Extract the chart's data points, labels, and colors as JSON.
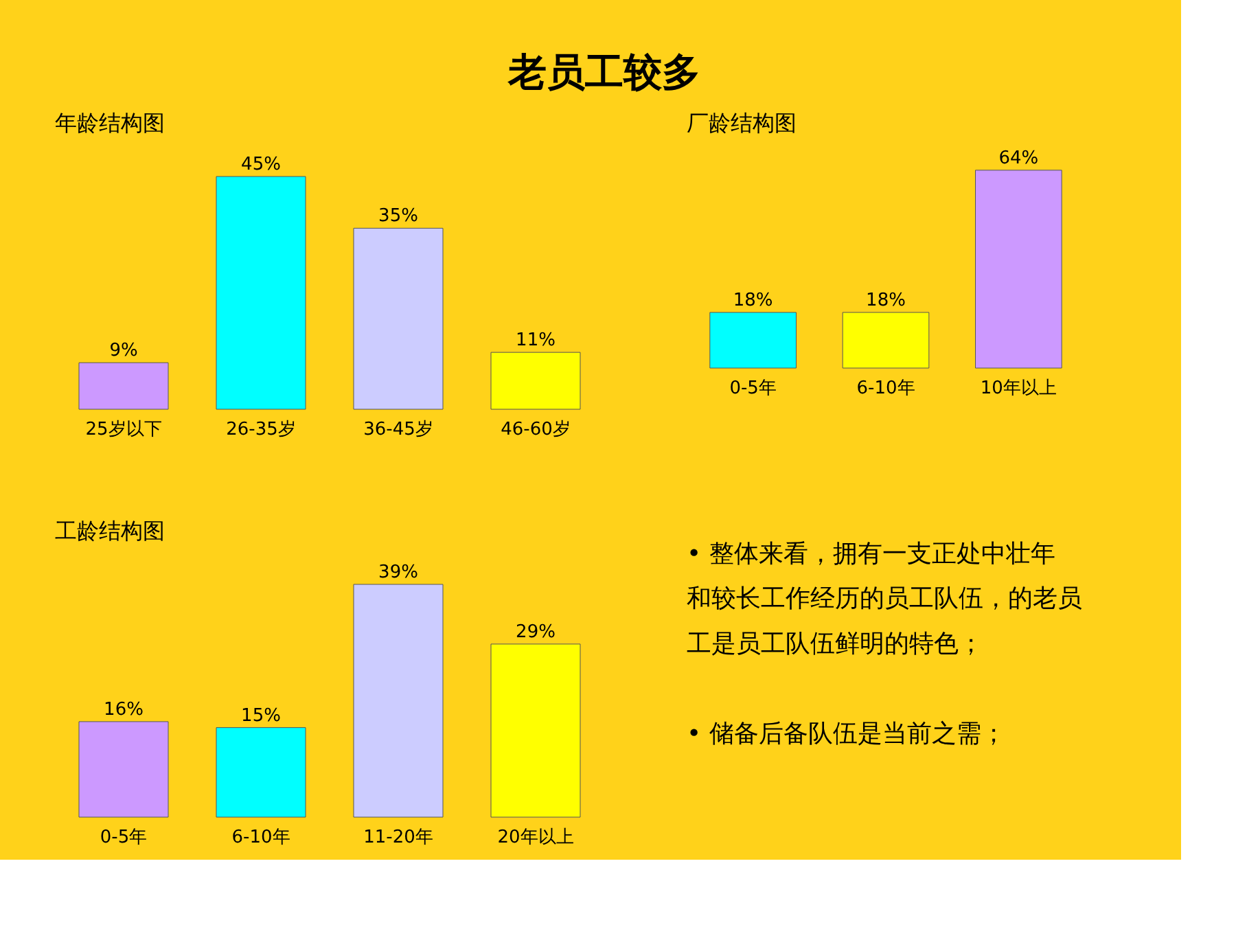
{
  "chart_data": [
    {
      "type": "bar",
      "title": "老员工较多",
      "subtitle": "年龄结构图",
      "categories": [
        "25岁以下",
        "26-35岁",
        "36-45岁",
        "46-60岁"
      ],
      "values": [
        9,
        45,
        35,
        11
      ],
      "colors": [
        "#cc99ff",
        "#00ffff",
        "#ccccff",
        "#ffff00"
      ],
      "value_labels": [
        "9%",
        "45%",
        "35%",
        "11%"
      ]
    },
    {
      "type": "bar",
      "title": "厂龄结构图",
      "categories": [
        "0-5年",
        "6-10年",
        "10年以上"
      ],
      "values": [
        18,
        18,
        64
      ],
      "colors": [
        "#00ffff",
        "#ffff00",
        "#cc99ff"
      ],
      "value_labels": [
        "18%",
        "18%",
        "64%"
      ]
    },
    {
      "type": "bar",
      "title": "工龄结构图",
      "categories": [
        "0-5年",
        "6-10年",
        "11-20年",
        "20年以上"
      ],
      "values": [
        16,
        15,
        39,
        29
      ],
      "colors": [
        "#cc99ff",
        "#00ffff",
        "#ccccff",
        "#ffff00"
      ],
      "value_labels": [
        "16%",
        "15%",
        "39%",
        "29%"
      ]
    },
    {
      "type": "other",
      "annotations": [
        "• 整体来看，拥有一支正处中壮年和较长工作经历的员工队伍，的老员工是员工队伍鲜明的特色；",
        "• 储备后备队伍是当前之需；"
      ]
    }
  ]
}
